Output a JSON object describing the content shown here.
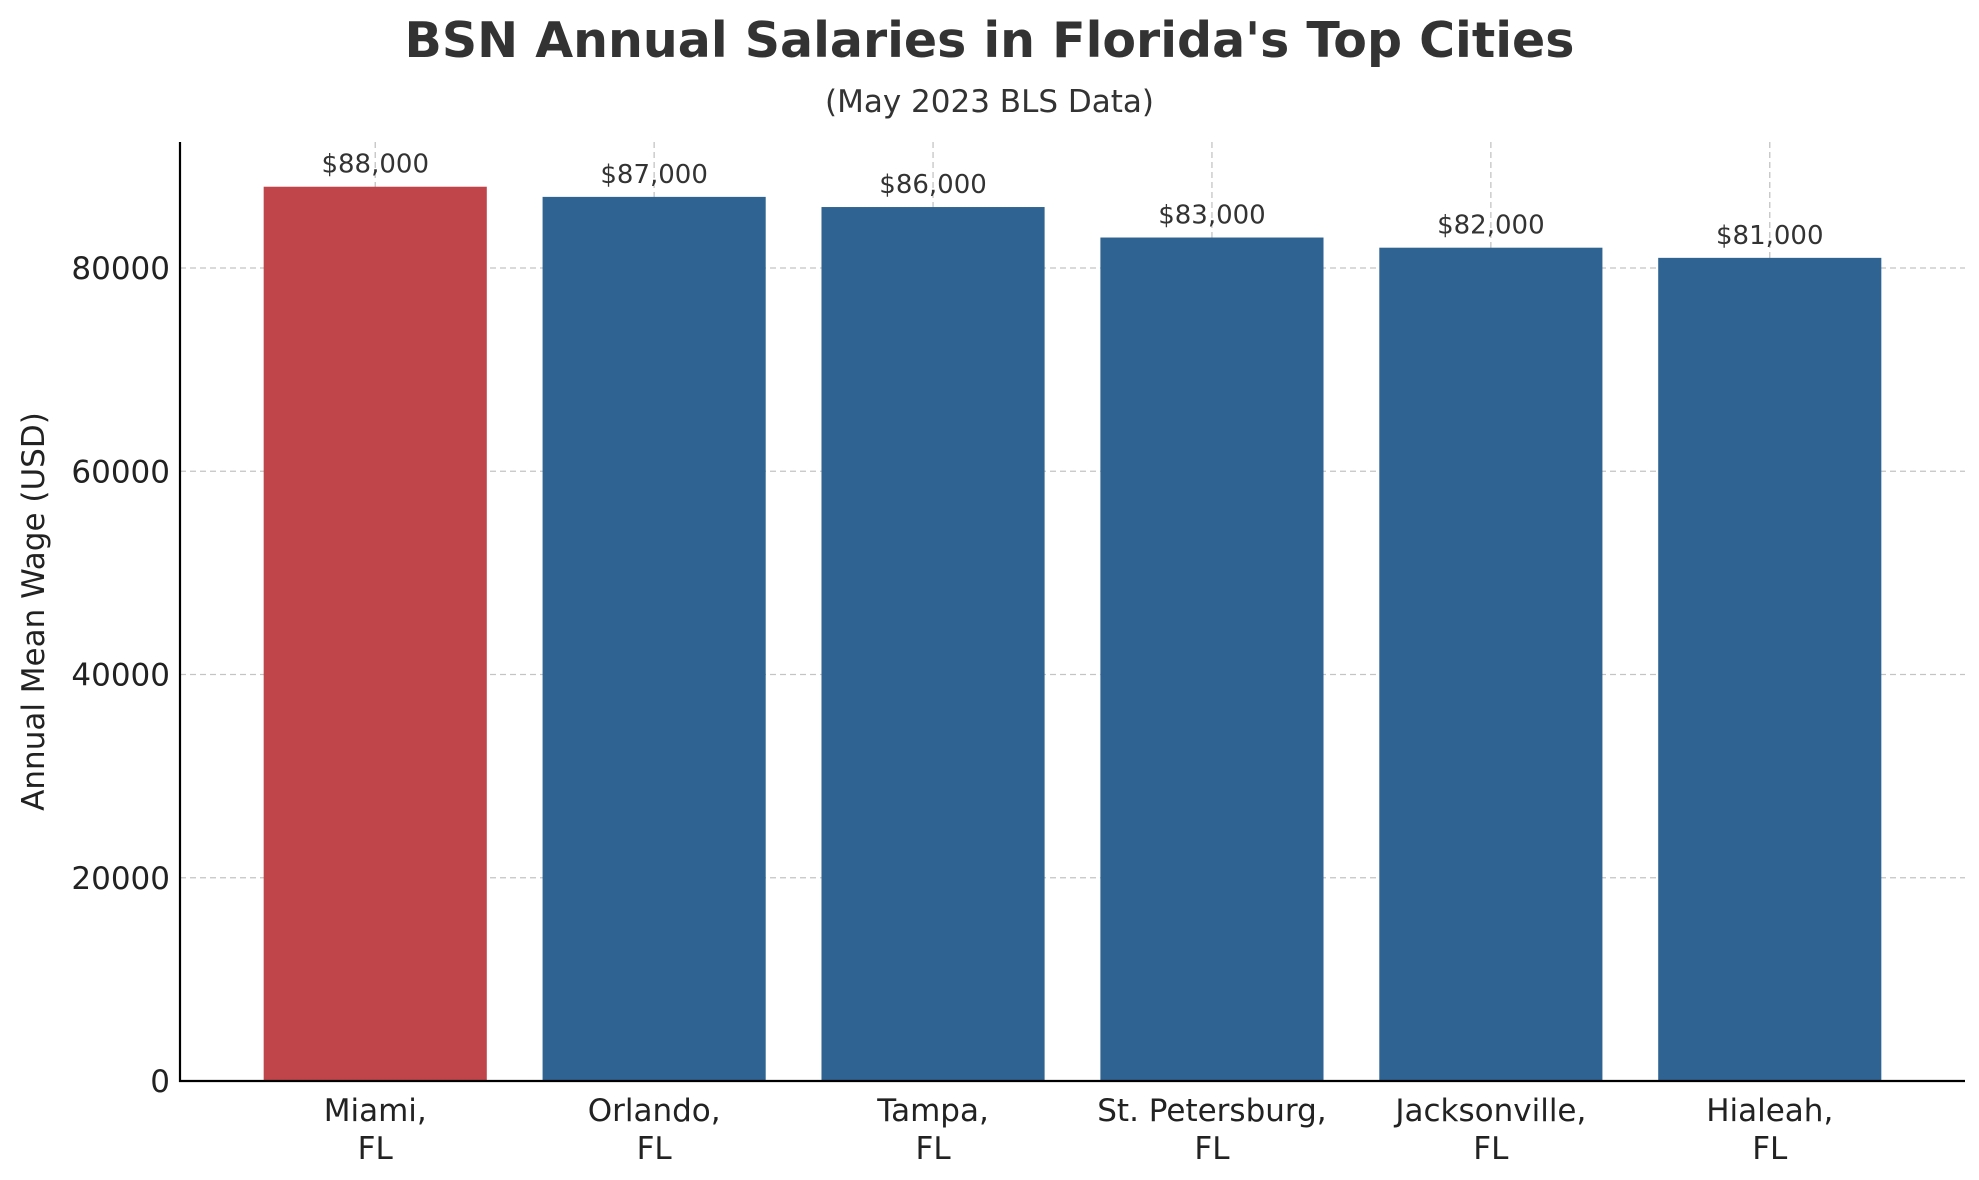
{
  "chart_data": {
    "type": "bar",
    "title": "BSN Annual Salaries in Florida's Top Cities",
    "subtitle": "(May 2023 BLS Data)",
    "xlabel": "",
    "ylabel": "Annual Mean Wage (USD)",
    "categories": [
      [
        "Miami,",
        "FL"
      ],
      [
        "Orlando,",
        "FL"
      ],
      [
        "Tampa,",
        "FL"
      ],
      [
        "St. Petersburg,",
        "FL"
      ],
      [
        "Jacksonville,",
        "FL"
      ],
      [
        "Hialeah,",
        "FL"
      ]
    ],
    "values": [
      88000,
      87000,
      86000,
      83000,
      82000,
      81000
    ],
    "value_labels": [
      "$88,000",
      "$87,000",
      "$86,000",
      "$83,000",
      "$82,000",
      "$81,000"
    ],
    "yticks": [
      0,
      20000,
      40000,
      60000,
      80000
    ],
    "ylim": [
      0,
      92400
    ],
    "grid": true,
    "colors": {
      "highlight": "#c0454a",
      "default": "#2f6392"
    },
    "highlight_index": 0
  }
}
